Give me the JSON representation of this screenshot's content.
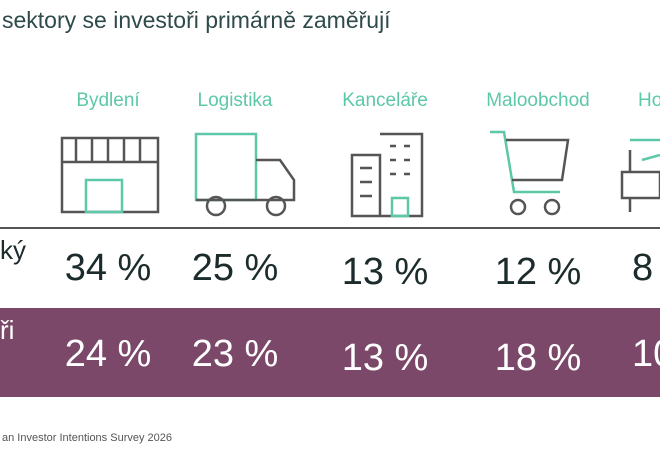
{
  "title": "sektory se investoři primárně zaměřují",
  "sectors": [
    {
      "label": "Bydlení"
    },
    {
      "label": "Logistika"
    },
    {
      "label": "Kanceláře"
    },
    {
      "label": "Maloobchod"
    },
    {
      "label": "Ho"
    }
  ],
  "rows": [
    {
      "label": "ký",
      "values": [
        "34 %",
        "25 %",
        "13 %",
        "12 %",
        "8"
      ]
    },
    {
      "label": "ři",
      "values": [
        "24 %",
        "23 %",
        "13 %",
        "18 %",
        "10"
      ]
    }
  ],
  "source": "an Investor Intentions Survey 2026"
}
